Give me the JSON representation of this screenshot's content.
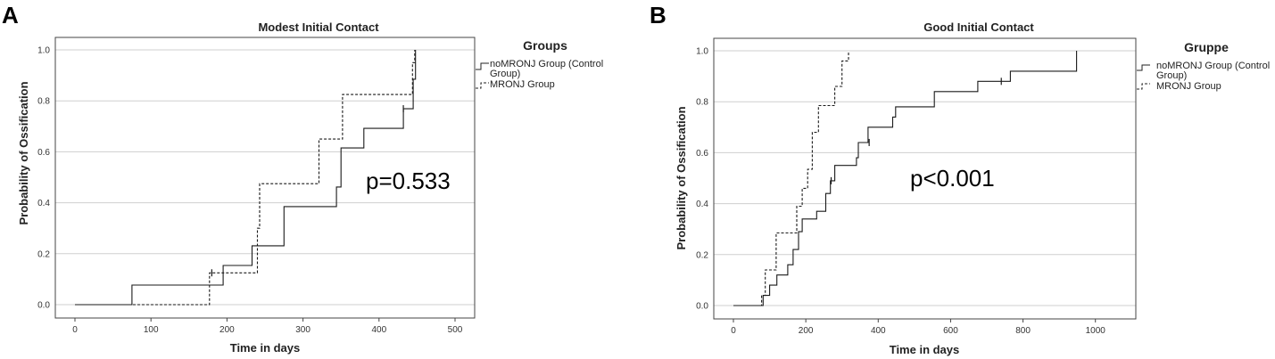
{
  "chart_data": [
    {
      "type": "line",
      "panel_label": "A",
      "title": "Modest Initial Contact",
      "xlabel": "Time in days",
      "ylabel": "Probability of Ossification",
      "xlim": [
        0,
        500
      ],
      "ylim": [
        0,
        1
      ],
      "xticks": [
        "0",
        "100",
        "200",
        "300",
        "400",
        "500"
      ],
      "yticks": [
        "0.0",
        "0.2",
        "0.4",
        "0.6",
        "0.8",
        "1.0"
      ],
      "legend_title": "Groups",
      "legend_entries": [
        "noMRONJ Group (Control",
        "Group)",
        "MRONJ Group"
      ],
      "annotation": "p=0.533",
      "series": [
        {
          "name": "noMRONJ Group (Control Group)",
          "style": "solid",
          "points": [
            [
              0,
              0
            ],
            [
              75,
              0
            ],
            [
              75,
              0.077
            ],
            [
              195,
              0.077
            ],
            [
              195,
              0.154
            ],
            [
              233,
              0.154
            ],
            [
              233,
              0.231
            ],
            [
              275,
              0.231
            ],
            [
              275,
              0.385
            ],
            [
              344,
              0.385
            ],
            [
              344,
              0.462
            ],
            [
              350,
              0.462
            ],
            [
              350,
              0.615
            ],
            [
              380,
              0.615
            ],
            [
              380,
              0.692
            ],
            [
              432,
              0.692
            ],
            [
              432,
              0.769
            ],
            [
              445,
              0.769
            ],
            [
              445,
              0.885
            ],
            [
              448,
              0.885
            ],
            [
              448,
              1.0
            ]
          ],
          "censored": [
            [
              432,
              0.769
            ]
          ]
        },
        {
          "name": "MRONJ Group",
          "style": "dashed",
          "points": [
            [
              0,
              0
            ],
            [
              177,
              0
            ],
            [
              177,
              0.125
            ],
            [
              240,
              0.125
            ],
            [
              240,
              0.3
            ],
            [
              243,
              0.3
            ],
            [
              243,
              0.475
            ],
            [
              321,
              0.475
            ],
            [
              321,
              0.65
            ],
            [
              352,
              0.65
            ],
            [
              352,
              0.825
            ],
            [
              444,
              0.825
            ],
            [
              444,
              0.95
            ],
            [
              447,
              0.95
            ],
            [
              447,
              1.0
            ]
          ],
          "censored": [
            [
              180,
              0.125
            ]
          ]
        }
      ]
    },
    {
      "type": "line",
      "panel_label": "B",
      "title": "Good Initial Contact",
      "xlabel": "Time in days",
      "ylabel": "Probability of Ossification",
      "xlim": [
        0,
        1050
      ],
      "ylim": [
        0,
        1
      ],
      "xticks": [
        "0",
        "200",
        "400",
        "600",
        "800",
        "1000"
      ],
      "yticks": [
        "0.0",
        "0.2",
        "0.4",
        "0.6",
        "0.8",
        "1.0"
      ],
      "legend_title": "Gruppe",
      "legend_entries": [
        "noMRONJ Group (Control",
        "Group)",
        "MRONJ Group"
      ],
      "annotation": "p<0.001",
      "series": [
        {
          "name": "noMRONJ Group (Control Group)",
          "style": "solid",
          "points": [
            [
              0,
              0
            ],
            [
              82,
              0
            ],
            [
              82,
              0.04
            ],
            [
              100,
              0.04
            ],
            [
              100,
              0.08
            ],
            [
              120,
              0.08
            ],
            [
              120,
              0.12
            ],
            [
              150,
              0.12
            ],
            [
              150,
              0.16
            ],
            [
              165,
              0.16
            ],
            [
              165,
              0.22
            ],
            [
              180,
              0.22
            ],
            [
              180,
              0.29
            ],
            [
              190,
              0.29
            ],
            [
              190,
              0.34
            ],
            [
              230,
              0.34
            ],
            [
              230,
              0.37
            ],
            [
              255,
              0.37
            ],
            [
              255,
              0.44
            ],
            [
              268,
              0.44
            ],
            [
              268,
              0.49
            ],
            [
              280,
              0.49
            ],
            [
              280,
              0.55
            ],
            [
              340,
              0.55
            ],
            [
              340,
              0.58
            ],
            [
              345,
              0.58
            ],
            [
              345,
              0.64
            ],
            [
              372,
              0.64
            ],
            [
              372,
              0.7
            ],
            [
              440,
              0.7
            ],
            [
              440,
              0.74
            ],
            [
              448,
              0.74
            ],
            [
              448,
              0.78
            ],
            [
              555,
              0.78
            ],
            [
              555,
              0.84
            ],
            [
              675,
              0.84
            ],
            [
              675,
              0.88
            ],
            [
              765,
              0.88
            ],
            [
              765,
              0.92
            ],
            [
              948,
              0.92
            ],
            [
              948,
              1.0
            ]
          ],
          "censored": [
            [
              270,
              0.49
            ],
            [
              375,
              0.64
            ],
            [
              740,
              0.88
            ]
          ]
        },
        {
          "name": "MRONJ Group",
          "style": "dashed",
          "points": [
            [
              0,
              0
            ],
            [
              78,
              0
            ],
            [
              78,
              0.04
            ],
            [
              88,
              0.04
            ],
            [
              88,
              0.14
            ],
            [
              118,
              0.14
            ],
            [
              118,
              0.285
            ],
            [
              175,
              0.285
            ],
            [
              175,
              0.39
            ],
            [
              190,
              0.39
            ],
            [
              190,
              0.46
            ],
            [
              205,
              0.46
            ],
            [
              205,
              0.535
            ],
            [
              218,
              0.535
            ],
            [
              218,
              0.68
            ],
            [
              235,
              0.68
            ],
            [
              235,
              0.785
            ],
            [
              280,
              0.785
            ],
            [
              280,
              0.86
            ],
            [
              300,
              0.86
            ],
            [
              300,
              0.96
            ],
            [
              318,
              0.96
            ],
            [
              318,
              1.0
            ]
          ],
          "censored": []
        }
      ]
    }
  ]
}
